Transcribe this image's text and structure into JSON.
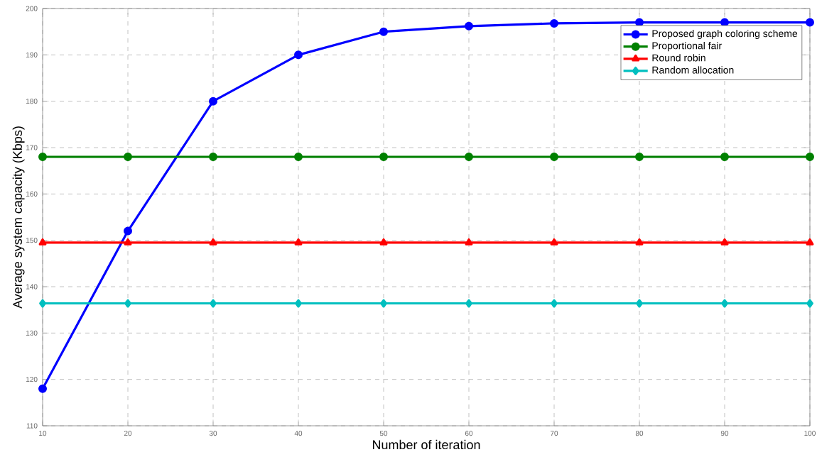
{
  "chart_data": {
    "type": "line",
    "xlabel": "Number of iteration",
    "ylabel": "Average system capacity (Kbps)",
    "x": [
      10,
      20,
      30,
      40,
      50,
      60,
      70,
      80,
      90,
      100
    ],
    "series": [
      {
        "name": "Proposed graph coloring scheme",
        "color": "#0000ff",
        "marker": "circle",
        "values": [
          118,
          152,
          180,
          190,
          195,
          196.2,
          196.8,
          197,
          197,
          197
        ]
      },
      {
        "name": "Proportional fair",
        "color": "#008000",
        "marker": "circle",
        "values": [
          168,
          168,
          168,
          168,
          168,
          168,
          168,
          168,
          168,
          168
        ]
      },
      {
        "name": "Round robin",
        "color": "#ff0000",
        "marker": "triangle",
        "values": [
          149.5,
          149.5,
          149.5,
          149.5,
          149.5,
          149.5,
          149.5,
          149.5,
          149.5,
          149.5
        ]
      },
      {
        "name": "Random allocation",
        "color": "#00bfbf",
        "marker": "diamond",
        "values": [
          136.4,
          136.4,
          136.4,
          136.4,
          136.4,
          136.4,
          136.4,
          136.4,
          136.4,
          136.4
        ]
      }
    ],
    "xlim": [
      10,
      100
    ],
    "ylim": [
      110,
      200
    ],
    "xticks": [
      10,
      20,
      30,
      40,
      50,
      60,
      70,
      80,
      90,
      100
    ],
    "yticks": [
      110,
      120,
      130,
      140,
      150,
      160,
      170,
      180,
      190,
      200
    ],
    "grid": true,
    "legend": "top right",
    "line_style": "solid"
  }
}
